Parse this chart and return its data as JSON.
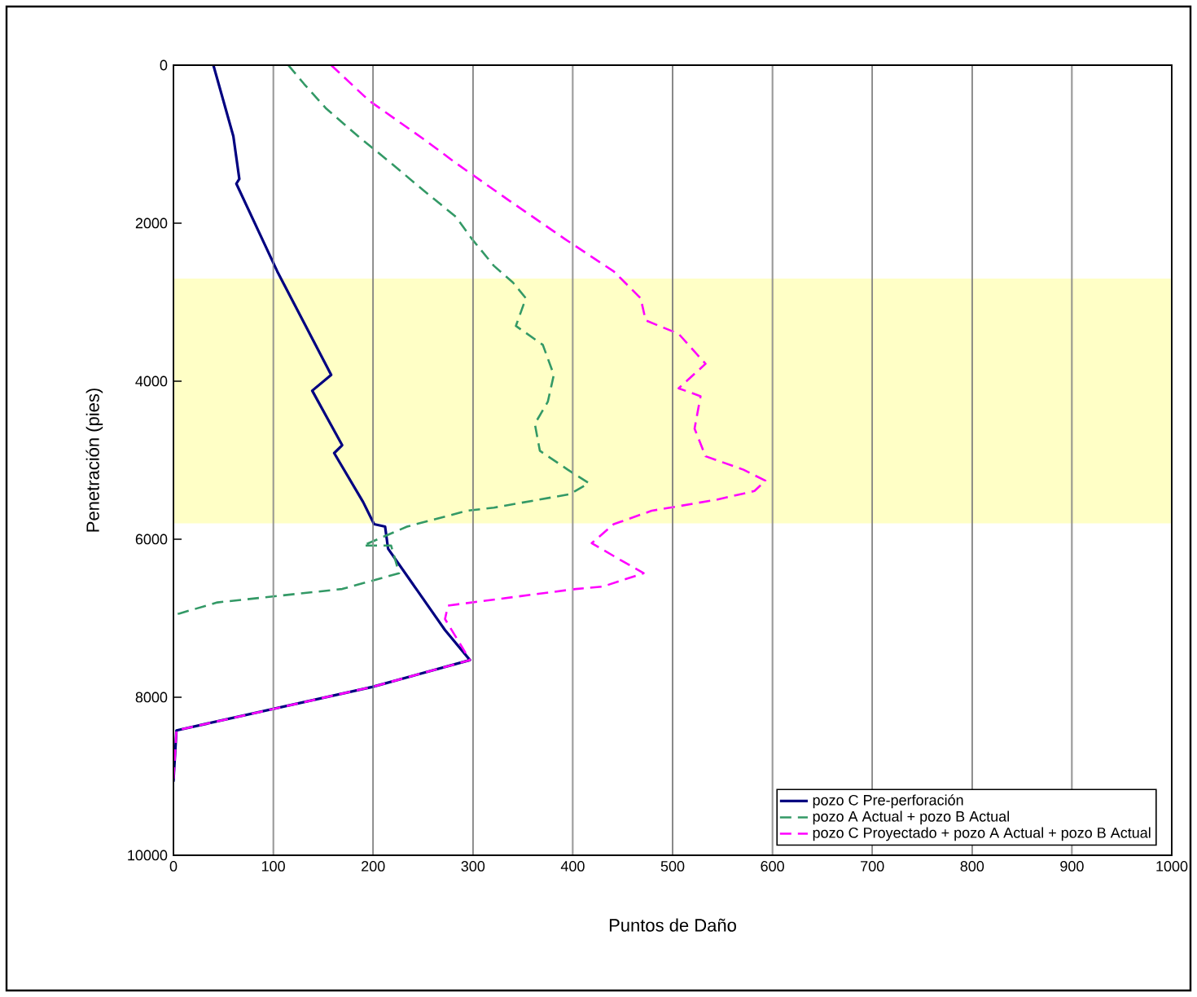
{
  "chart_data": {
    "type": "line",
    "xlabel": "Puntos de Daño",
    "ylabel": "Penetración (pies)",
    "xlim": [
      0,
      1000
    ],
    "xticks": [
      0,
      100,
      200,
      300,
      400,
      500,
      600,
      700,
      800,
      900,
      1000
    ],
    "ylim": [
      10000,
      0
    ],
    "yticks": [
      0,
      2000,
      4000,
      6000,
      8000,
      10000
    ],
    "grid": "x",
    "legend": "bottom right",
    "bands": [
      {
        "axis": "y",
        "from": 2700,
        "to": 5800,
        "color": "#ffffc6"
      }
    ],
    "series": [
      {
        "name": "pozo C Pre-perforación",
        "color": "#000080",
        "line_style": "solid",
        "x": [
          40,
          60,
          66,
          63,
          104,
          158,
          139,
          169,
          161,
          190,
          201,
          212,
          215,
          272,
          297,
          199,
          3,
          0
        ],
        "values": [
          0,
          900,
          1440,
          1500,
          2610,
          3920,
          4120,
          4810,
          4910,
          5530,
          5810,
          5840,
          6120,
          7150,
          7530,
          7870,
          8420,
          9070
        ]
      },
      {
        "name": "pozo A Actual + pozo B Actual",
        "color": "#339966",
        "line_style": "dashed",
        "x": [
          115,
          131,
          153,
          185,
          218,
          250,
          283,
          299,
          321,
          340,
          353,
          343,
          370,
          381,
          375,
          362,
          367,
          395,
          416,
          397,
          321,
          294,
          234,
          190,
          218,
          226,
          169,
          44,
          6,
          0
        ],
        "values": [
          0,
          240,
          550,
          900,
          1240,
          1580,
          1920,
          2200,
          2540,
          2750,
          2950,
          3300,
          3540,
          3920,
          4260,
          4540,
          4880,
          5120,
          5290,
          5430,
          5600,
          5640,
          5840,
          6080,
          6080,
          6430,
          6630,
          6800,
          6940,
          6950
        ]
      },
      {
        "name": "pozo C Proyectado + pozo A Actual + pozo B Actual",
        "color": "#ff00ff",
        "line_style": "dashed",
        "x": [
          158,
          196,
          223,
          250,
          283,
          337,
          392,
          441,
          468,
          473,
          506,
          533,
          506,
          528,
          522,
          533,
          571,
          593,
          582,
          544,
          479,
          441,
          419,
          446,
          471,
          430,
          403,
          275,
          272,
          297,
          199,
          3,
          0
        ],
        "values": [
          0,
          450,
          690,
          930,
          1240,
          1720,
          2200,
          2610,
          2950,
          3230,
          3400,
          3780,
          4090,
          4190,
          4600,
          4950,
          5120,
          5260,
          5390,
          5500,
          5640,
          5810,
          6050,
          6250,
          6430,
          6600,
          6630,
          6840,
          7010,
          7530,
          7870,
          8420,
          9070
        ]
      }
    ]
  }
}
